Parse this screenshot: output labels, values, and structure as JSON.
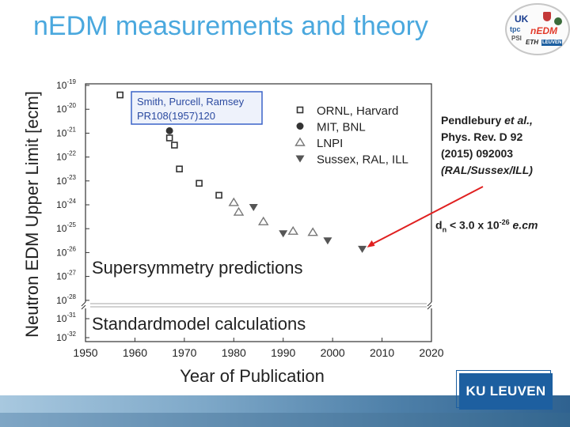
{
  "slide": {
    "title": "nEDM measurements and theory"
  },
  "logo": {
    "items": [
      "UK",
      "tpc",
      "PSI",
      "nEDM",
      "ETH",
      "LEUVEN"
    ]
  },
  "reference": {
    "line1_author": "Pendlebury ",
    "line1_etal": "et al.,",
    "line2": "Phys. Rev. D 92",
    "line3": "(2015) 092003",
    "line4": "(RAL/Sussex/ILL)"
  },
  "limit": {
    "prefix": "d",
    "subscript": "n",
    "middle": " < 3.0 x 10",
    "exponent": "-26",
    "unit": " e.cm"
  },
  "branding": {
    "ku_label": "KU LEUVEN"
  },
  "chart_data": {
    "type": "scatter",
    "xlabel": "Year of Publication",
    "ylabel": "Neutron EDM Upper Limit [ecm]",
    "xlim": [
      1950,
      2020
    ],
    "x_ticks": [
      "1950",
      "1960",
      "1970",
      "1980",
      "1990",
      "2000",
      "2010",
      "2020"
    ],
    "y_scale": "log",
    "y_ticks_upper": [
      {
        "exp": "-19"
      },
      {
        "exp": "-20"
      },
      {
        "exp": "-21"
      },
      {
        "exp": "-22"
      },
      {
        "exp": "-23"
      },
      {
        "exp": "-24"
      },
      {
        "exp": "-25"
      },
      {
        "exp": "-26"
      },
      {
        "exp": "-27"
      },
      {
        "exp": "-28"
      }
    ],
    "y_ticks_lower": [
      {
        "exp": "-31"
      },
      {
        "exp": "-32"
      }
    ],
    "axis_break": true,
    "box_label_line1": "Smith, Purcell, Ramsey",
    "box_label_line2": "PR108(1957)120",
    "susy_label": "Supersymmetry predictions",
    "sm_label": "Standardmodel calculations",
    "reference_line_exp": -25,
    "legend": [
      {
        "name": "ORNL, Harvard",
        "marker": "square-open"
      },
      {
        "name": "MIT, BNL",
        "marker": "circle-filled"
      },
      {
        "name": "LNPI",
        "marker": "triangle-up-open"
      },
      {
        "name": "Sussex, RAL, ILL",
        "marker": "triangle-down-filled"
      }
    ],
    "series": [
      {
        "name": "ORNL, Harvard",
        "marker": "square-open",
        "points": [
          [
            1957,
            -19.4
          ],
          [
            1967,
            -21.2
          ],
          [
            1968,
            -21.5
          ],
          [
            1969,
            -22.5
          ],
          [
            1973,
            -23.1
          ],
          [
            1977,
            -23.6
          ]
        ]
      },
      {
        "name": "MIT, BNL",
        "marker": "circle-filled",
        "points": [
          [
            1967,
            -20.9
          ]
        ]
      },
      {
        "name": "LNPI",
        "marker": "triangle-up-open",
        "points": [
          [
            1980,
            -23.9
          ],
          [
            1981,
            -24.3
          ],
          [
            1986,
            -24.7
          ],
          [
            1992,
            -25.1
          ],
          [
            1996,
            -25.15
          ]
        ]
      },
      {
        "name": "Sussex, RAL, ILL",
        "marker": "triangle-down-filled",
        "points": [
          [
            1984,
            -24.1
          ],
          [
            1990,
            -25.2
          ],
          [
            1999,
            -25.5
          ],
          [
            2006,
            -25.85
          ]
        ]
      }
    ],
    "colors": {
      "title_blue": "#4aa8de",
      "box_border": "#3b64c8",
      "box_text": "#2b4aa0",
      "grid": "#d6d6d6",
      "reference_line": "#aaaaaa",
      "arrow": "#e02020",
      "marker": "#333333",
      "marker_gray": "#777777"
    }
  }
}
